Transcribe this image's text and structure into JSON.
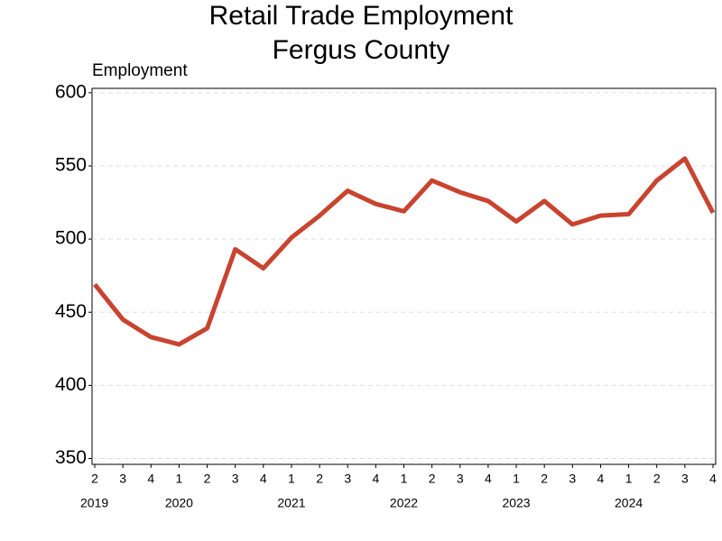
{
  "chart_data": {
    "type": "line",
    "title": [
      "Retail Trade Employment",
      "Fergus County"
    ],
    "y_label": "Employment",
    "groups": [
      {
        "year": "2019",
        "quarters": [
          "2",
          "3",
          "4"
        ]
      },
      {
        "year": "2020",
        "quarters": [
          "1",
          "2",
          "3",
          "4"
        ]
      },
      {
        "year": "2021",
        "quarters": [
          "1",
          "2",
          "3",
          "4"
        ]
      },
      {
        "year": "2022",
        "quarters": [
          "1",
          "2",
          "3",
          "4"
        ]
      },
      {
        "year": "2023",
        "quarters": [
          "1",
          "2",
          "3",
          "4"
        ]
      },
      {
        "year": "2024",
        "quarters": [
          "1",
          "2",
          "3",
          "4"
        ]
      }
    ],
    "series": [
      {
        "name": "Employment",
        "color": "#c8442f",
        "values": [
          469,
          445,
          433,
          428,
          439,
          493,
          480,
          501,
          516,
          533,
          524,
          519,
          540,
          532,
          526,
          512,
          526,
          510,
          516,
          517,
          540,
          555,
          518
        ]
      }
    ],
    "ylim": [
      346,
      603
    ],
    "yticks": [
      350,
      400,
      450,
      500,
      550,
      600
    ],
    "grid": true
  }
}
